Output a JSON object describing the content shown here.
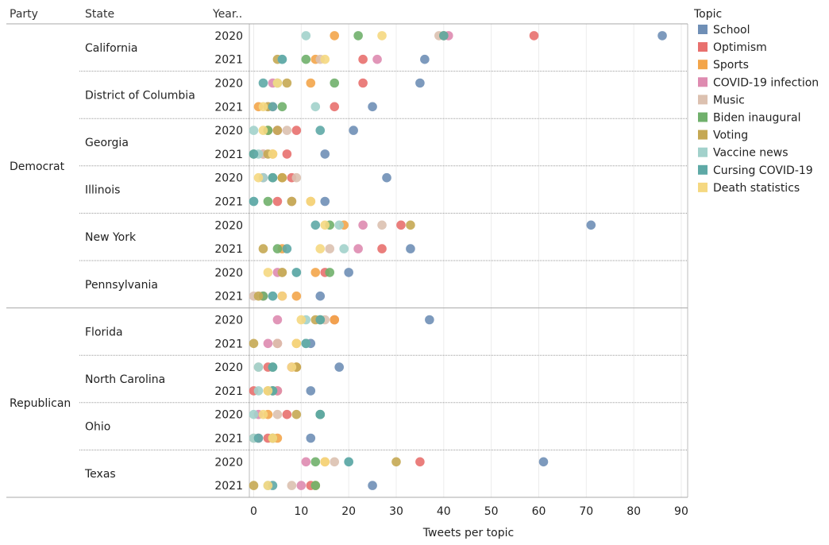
{
  "chart_data": {
    "type": "scatter",
    "headers": {
      "party": "Party",
      "state": "State",
      "year": "Year.."
    },
    "xlabel": "Tweets per topic",
    "xlim": [
      0,
      92
    ],
    "xticks": [
      0,
      10,
      20,
      30,
      40,
      50,
      60,
      70,
      80,
      90
    ],
    "legend_title": "Topic",
    "legend_position": "right",
    "topics": [
      {
        "name": "School",
        "color": "#6f8fb6"
      },
      {
        "name": "Optimism",
        "color": "#e8706e"
      },
      {
        "name": "Sports",
        "color": "#f3a54a"
      },
      {
        "name": "COVID-19 infection",
        "color": "#de8bb0"
      },
      {
        "name": "Music",
        "color": "#dcc1b0"
      },
      {
        "name": "Biden inaugural",
        "color": "#70b06c"
      },
      {
        "name": "Voting",
        "color": "#c5a853"
      },
      {
        "name": "Vaccine news",
        "color": "#a2d1cb"
      },
      {
        "name": "Cursing COVID-19",
        "color": "#5ea9a6"
      },
      {
        "name": "Death statistics",
        "color": "#f5d881"
      }
    ],
    "parties": [
      {
        "name": "Democrat",
        "states": [
          {
            "name": "California",
            "years": [
              {
                "year": "2020",
                "values": [
                  86,
                  59,
                  17,
                  41,
                  39,
                  22,
                  40,
                  11,
                  40,
                  27
                ]
              },
              {
                "year": "2021",
                "values": [
                  36,
                  23,
                  13,
                  26,
                  14,
                  11,
                  5,
                  6,
                  6,
                  15
                ]
              }
            ]
          },
          {
            "name": "District of Columbia",
            "years": [
              {
                "year": "2020",
                "values": [
                  35,
                  23,
                  12,
                  4,
                  5,
                  17,
                  7,
                  5,
                  2,
                  5
                ]
              },
              {
                "year": "2021",
                "values": [
                  25,
                  17,
                  1,
                  4,
                  3,
                  6,
                  3,
                  13,
                  4,
                  2
                ]
              }
            ]
          },
          {
            "name": "Georgia",
            "years": [
              {
                "year": "2020",
                "values": [
                  21,
                  9,
                  3,
                  5,
                  7,
                  3,
                  5,
                  0,
                  14,
                  2
                ]
              },
              {
                "year": "2021",
                "values": [
                  15,
                  7,
                  4,
                  2,
                  2,
                  0,
                  3,
                  1,
                  0,
                  4
                ]
              }
            ]
          },
          {
            "name": "Illinois",
            "years": [
              {
                "year": "2020",
                "values": [
                  28,
                  8,
                  6,
                  2,
                  9,
                  4,
                  6,
                  2,
                  4,
                  1
                ]
              },
              {
                "year": "2021",
                "values": [
                  15,
                  5,
                  12,
                  8,
                  8,
                  3,
                  8,
                  0,
                  0,
                  12
                ]
              }
            ]
          },
          {
            "name": "New York",
            "years": [
              {
                "year": "2020",
                "values": [
                  71,
                  31,
                  19,
                  23,
                  27,
                  16,
                  33,
                  18,
                  13,
                  15
                ]
              },
              {
                "year": "2021",
                "values": [
                  33,
                  27,
                  6,
                  22,
                  16,
                  5,
                  2,
                  19,
                  7,
                  14
                ]
              }
            ]
          },
          {
            "name": "Pennsylvania",
            "years": [
              {
                "year": "2020",
                "values": [
                  20,
                  15,
                  13,
                  5,
                  6,
                  16,
                  6,
                  9,
                  9,
                  3
                ]
              },
              {
                "year": "2021",
                "values": [
                  14,
                  6,
                  9,
                  2,
                  0,
                  2,
                  1,
                  4,
                  4,
                  6
                ]
              }
            ]
          }
        ]
      },
      {
        "name": "Republican",
        "states": [
          {
            "name": "Florida",
            "years": [
              {
                "year": "2020",
                "values": [
                  37,
                  17,
                  17,
                  5,
                  15,
                  14,
                  13,
                  11,
                  14,
                  10
                ]
              },
              {
                "year": "2021",
                "values": [
                  12,
                  5,
                  9,
                  3,
                  5,
                  11,
                  0,
                  11,
                  11,
                  9
                ]
              }
            ]
          },
          {
            "name": "North Carolina",
            "years": [
              {
                "year": "2020",
                "values": [
                  18,
                  3,
                  9,
                  8,
                  1,
                  4,
                  9,
                  1,
                  4,
                  8
                ]
              },
              {
                "year": "2021",
                "values": [
                  12,
                  0,
                  5,
                  5,
                  4,
                  4,
                  3,
                  1,
                  4,
                  3
                ]
              }
            ]
          },
          {
            "name": "Ohio",
            "years": [
              {
                "year": "2020",
                "values": [
                  14,
                  7,
                  3,
                  1,
                  5,
                  14,
                  9,
                  0,
                  14,
                  2
                ]
              },
              {
                "year": "2021",
                "values": [
                  12,
                  3,
                  5,
                  1,
                  0,
                  4,
                  4,
                  0,
                  1,
                  4
                ]
              }
            ]
          },
          {
            "name": "Texas",
            "years": [
              {
                "year": "2020",
                "values": [
                  61,
                  35,
                  15,
                  11,
                  17,
                  13,
                  30,
                  20,
                  20,
                  15
                ]
              },
              {
                "year": "2021",
                "values": [
                  25,
                  12,
                  13,
                  10,
                  8,
                  13,
                  0,
                  3,
                  4,
                  3
                ]
              }
            ]
          }
        ]
      }
    ]
  }
}
